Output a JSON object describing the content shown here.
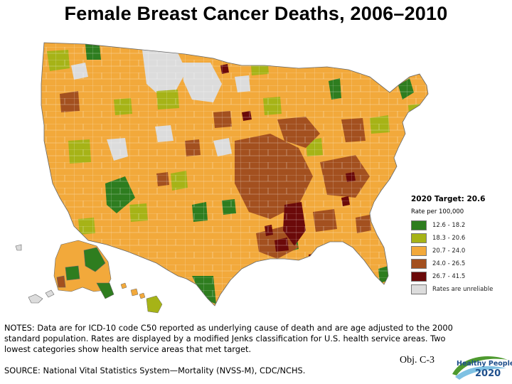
{
  "title": "Female Breast Cancer Deaths, 2006–2010",
  "legend": {
    "target_label": "2020 Target: 20.6",
    "unit": "Rate per 100,000",
    "items": [
      {
        "label": "12.6 - 18.2",
        "color": "#2e7d1f"
      },
      {
        "label": "18.3 - 20.6",
        "color": "#a6b317"
      },
      {
        "label": "20.7 - 24.0",
        "color": "#f2a93b"
      },
      {
        "label": "24.0 - 26.5",
        "color": "#a3501f"
      },
      {
        "label": "26.7 - 41.5",
        "color": "#6b0a0a"
      },
      {
        "label": "Rates are unreliable",
        "color": "#dcdcdc"
      }
    ]
  },
  "notes": [
    "NOTES:  Data are for ICD-10 code C50 reported as underlying cause of death and are age adjusted to the 2000",
    "standard population. Rates are displayed by a modified Jenks classification for U.S. health service areas. Two",
    "lowest categories show health service areas that met target."
  ],
  "source": "SOURCE: National Vital Statistics System—Mortality (NVSS-M), CDC/NCHS.",
  "objective": "Obj. C-3",
  "logo": {
    "line1": "Healthy People",
    "line2": "2020"
  }
}
